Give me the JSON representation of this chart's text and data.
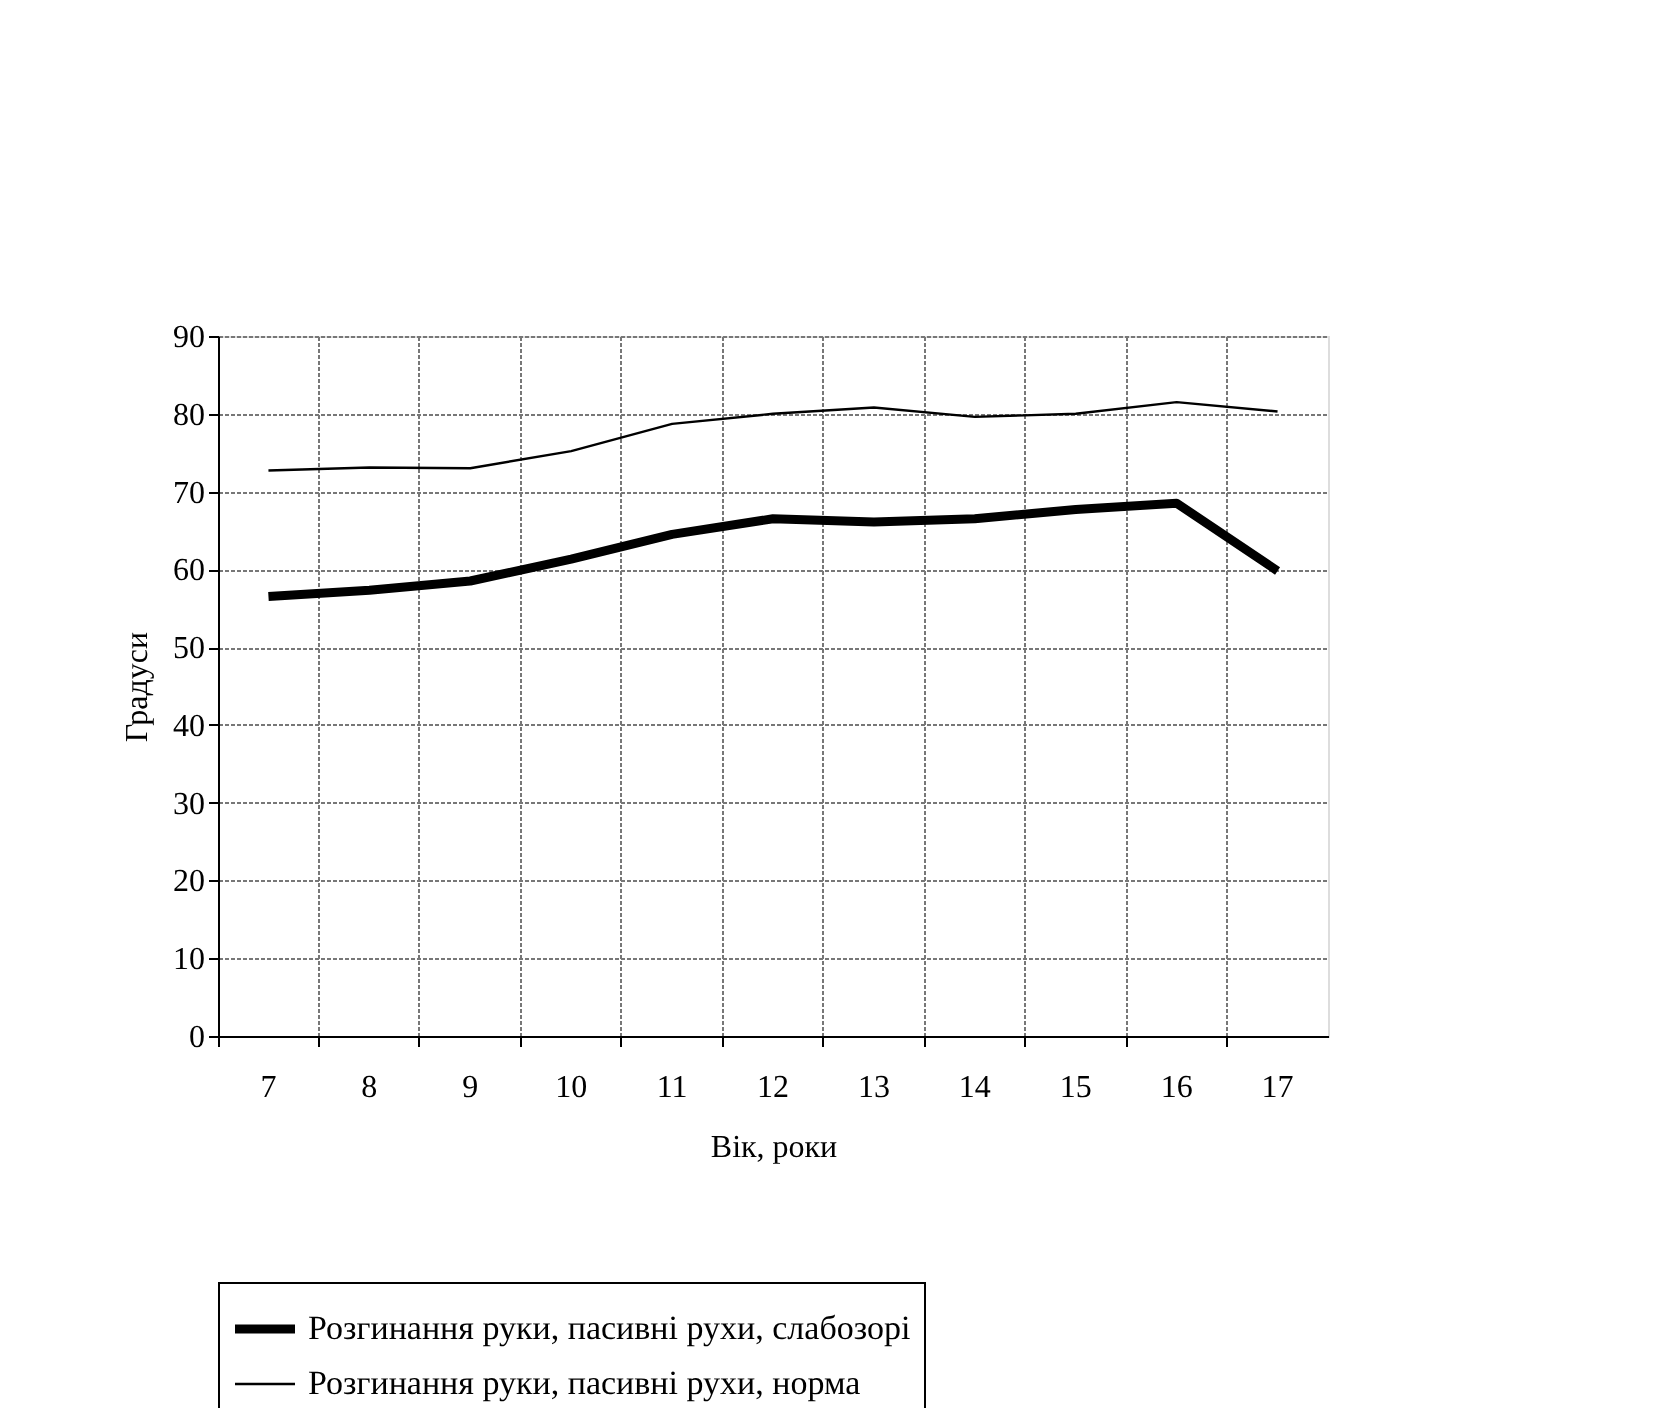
{
  "chart_data": {
    "type": "line",
    "xlabel": "Вік, роки",
    "ylabel": "Градуси",
    "categories": [
      "7",
      "8",
      "9",
      "10",
      "11",
      "12",
      "13",
      "14",
      "15",
      "16",
      "17"
    ],
    "series": [
      {
        "name": "Розгинання руки, пасивні рухи, слабозорі",
        "color": "#000000",
        "values": [
          56.5,
          57.3,
          58.5,
          61.3,
          64.5,
          66.5,
          66.1,
          66.5,
          67.7,
          68.5,
          59.8
        ]
      },
      {
        "name": "Розгинання руки, пасивні рухи, норма",
        "color": "#000000",
        "values": [
          72.7,
          73.1,
          73.0,
          75.2,
          78.7,
          80.0,
          80.8,
          79.6,
          80.0,
          81.5,
          80.3
        ]
      }
    ],
    "ylim": [
      0,
      90
    ],
    "yticks": [
      0,
      10,
      20,
      30,
      40,
      50,
      60,
      70,
      80,
      90
    ],
    "grid": true,
    "legend": "bottom",
    "marker": "none",
    "line_style": "solid"
  }
}
